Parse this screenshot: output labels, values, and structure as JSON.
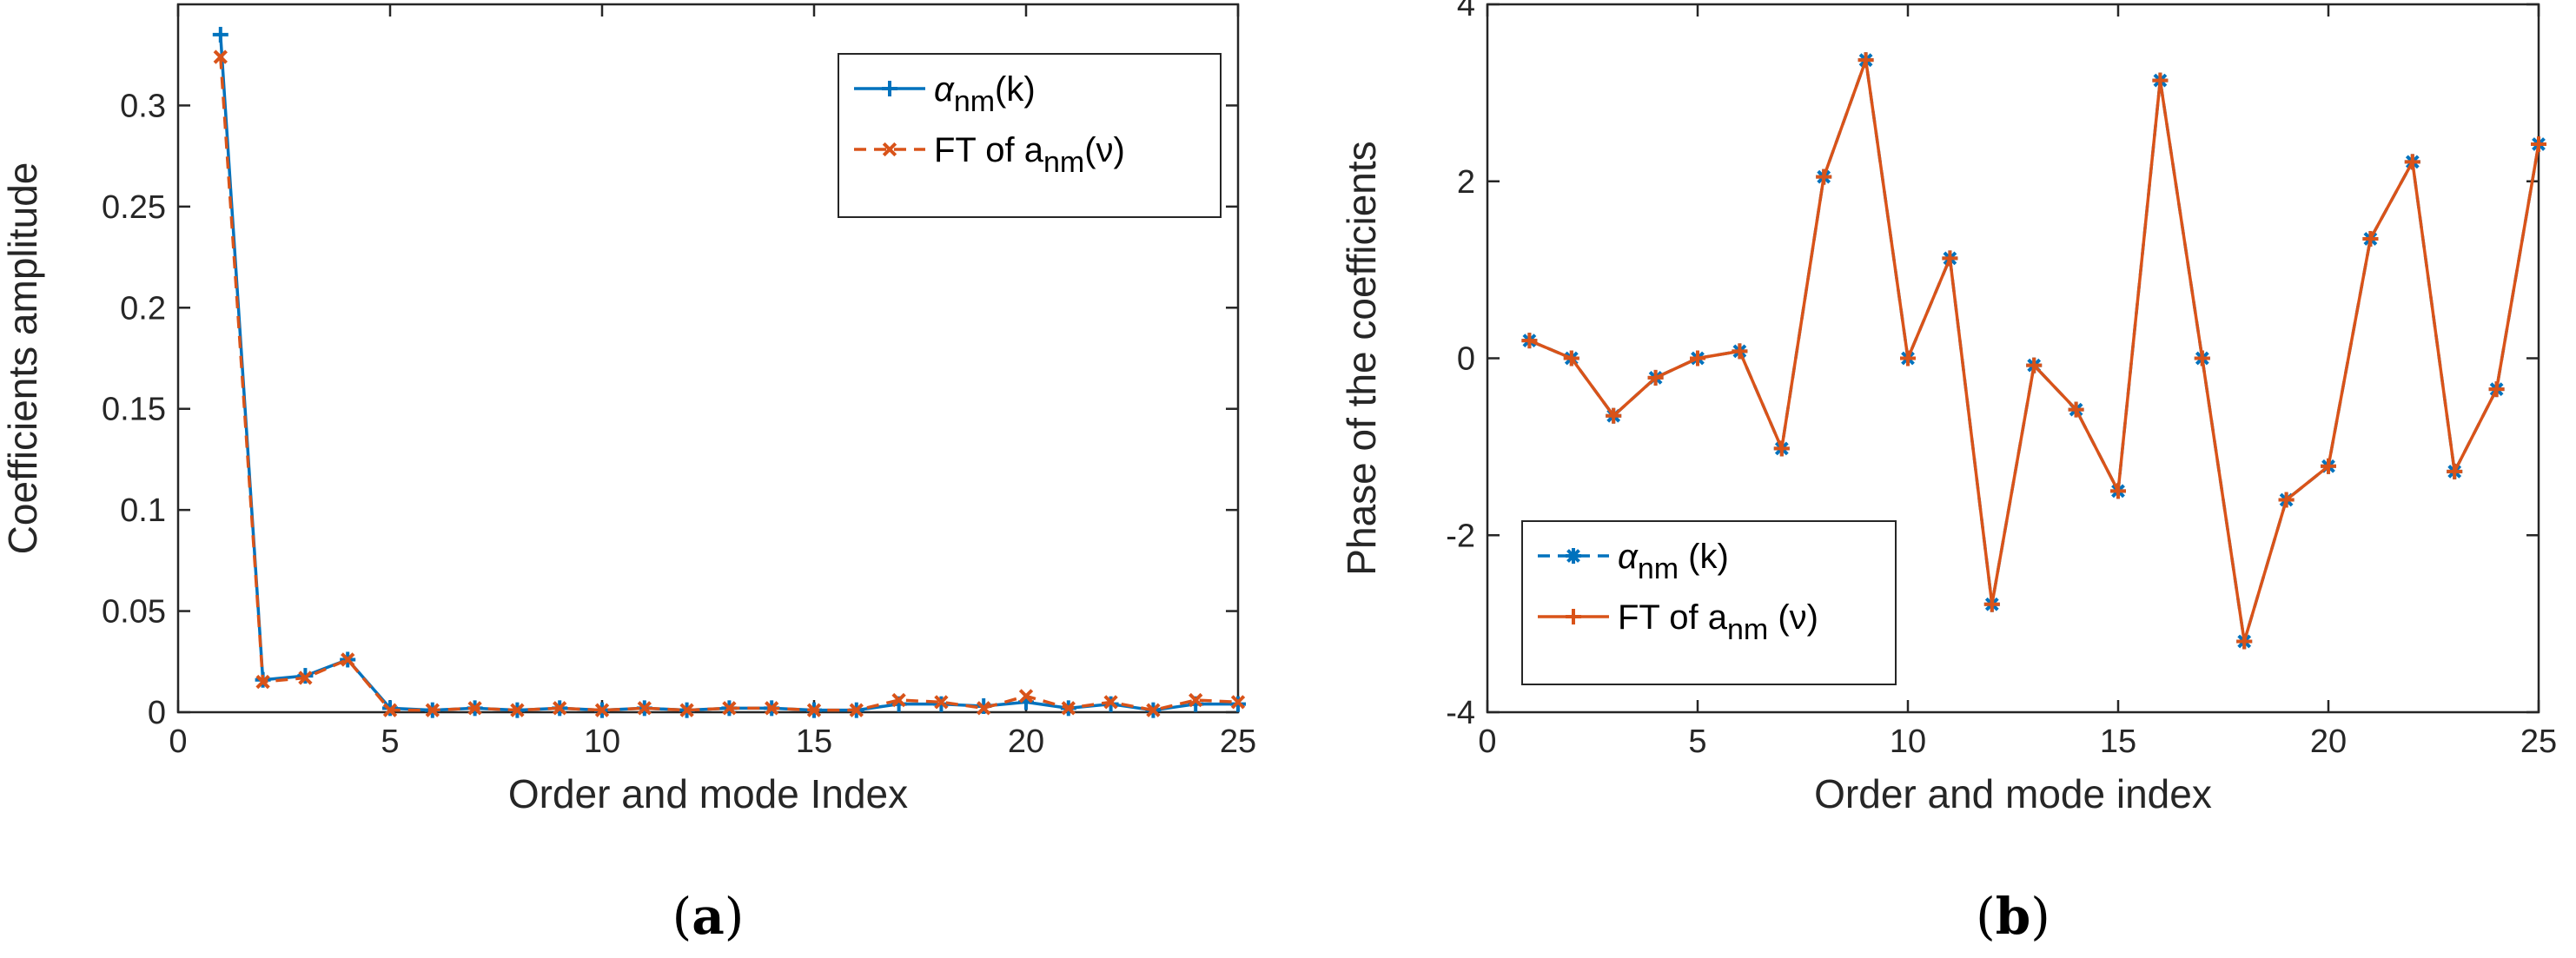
{
  "colors": {
    "blue": "#0072BD",
    "orange": "#D95319",
    "axis": "#262626"
  },
  "chart_data": [
    {
      "type": "line",
      "caption_open": "(",
      "caption_letter": "a",
      "caption_close": ")",
      "xlabel": "Order and mode Index",
      "ylabel": "Coefficients amplitude",
      "xlim": [
        0,
        25
      ],
      "ylim": [
        0,
        0.35
      ],
      "xticks": [
        "0",
        "5",
        "10",
        "15",
        "20",
        "25"
      ],
      "yticks": [
        "0",
        "0.05",
        "0.1",
        "0.15",
        "0.2",
        "0.25",
        "0.3"
      ],
      "legend_position": "top-right",
      "x": [
        1,
        2,
        3,
        4,
        5,
        6,
        7,
        8,
        9,
        10,
        11,
        12,
        13,
        14,
        15,
        16,
        17,
        18,
        19,
        20,
        21,
        22,
        23,
        24,
        25
      ],
      "series": [
        {
          "legend_main": "α",
          "legend_sub": "nm",
          "legend_tail": "(k)",
          "color": "#0072BD",
          "linestyle": "solid",
          "marker": "plus",
          "values": [
            0.335,
            0.016,
            0.018,
            0.026,
            0.002,
            0.001,
            0.002,
            0.001,
            0.002,
            0.001,
            0.002,
            0.001,
            0.002,
            0.002,
            0.001,
            0.001,
            0.004,
            0.004,
            0.003,
            0.005,
            0.002,
            0.004,
            0.001,
            0.004,
            0.004
          ]
        },
        {
          "legend_main": "FT of a",
          "legend_sub": "nm",
          "legend_tail": "(ν)",
          "color": "#D95319",
          "linestyle": "dashed",
          "marker": "x",
          "values": [
            0.324,
            0.015,
            0.017,
            0.026,
            0.001,
            0.001,
            0.002,
            0.001,
            0.002,
            0.001,
            0.002,
            0.001,
            0.002,
            0.002,
            0.001,
            0.001,
            0.006,
            0.005,
            0.002,
            0.008,
            0.002,
            0.005,
            0.001,
            0.006,
            0.005
          ]
        }
      ]
    },
    {
      "type": "line",
      "caption_open": "(",
      "caption_letter": "b",
      "caption_close": ")",
      "xlabel": "Order and mode index",
      "ylabel": "Phase of the coefficients",
      "xlim": [
        0,
        25
      ],
      "ylim": [
        -4,
        4
      ],
      "xticks": [
        "0",
        "5",
        "10",
        "15",
        "20",
        "25"
      ],
      "yticks": [
        "-4",
        "-2",
        "0",
        "2",
        "4"
      ],
      "legend_position": "bottom-left",
      "x": [
        1,
        2,
        3,
        4,
        5,
        6,
        7,
        8,
        9,
        10,
        11,
        12,
        13,
        14,
        15,
        16,
        17,
        18,
        19,
        20,
        21,
        22,
        23,
        24,
        25
      ],
      "series": [
        {
          "legend_main": "α",
          "legend_sub": "nm",
          "legend_tail": " (k)",
          "color": "#0072BD",
          "linestyle": "dashed",
          "marker": "asterisk",
          "values": [
            0.2,
            0.0,
            -0.65,
            -0.22,
            0.0,
            0.08,
            -1.02,
            2.05,
            3.37,
            0.0,
            1.13,
            -2.78,
            -0.08,
            -0.58,
            -1.5,
            3.14,
            0.0,
            -3.2,
            -1.6,
            -1.22,
            1.35,
            2.22,
            -1.28,
            -0.35,
            2.42
          ]
        },
        {
          "legend_main": "FT of a",
          "legend_sub": "nm",
          "legend_tail": " (ν)",
          "color": "#D95319",
          "linestyle": "solid",
          "marker": "plus",
          "values": [
            0.2,
            0.0,
            -0.65,
            -0.22,
            0.0,
            0.08,
            -1.02,
            2.05,
            3.37,
            0.0,
            1.13,
            -2.78,
            -0.08,
            -0.58,
            -1.5,
            3.14,
            0.0,
            -3.2,
            -1.6,
            -1.22,
            1.35,
            2.22,
            -1.28,
            -0.35,
            2.42
          ]
        }
      ]
    }
  ]
}
